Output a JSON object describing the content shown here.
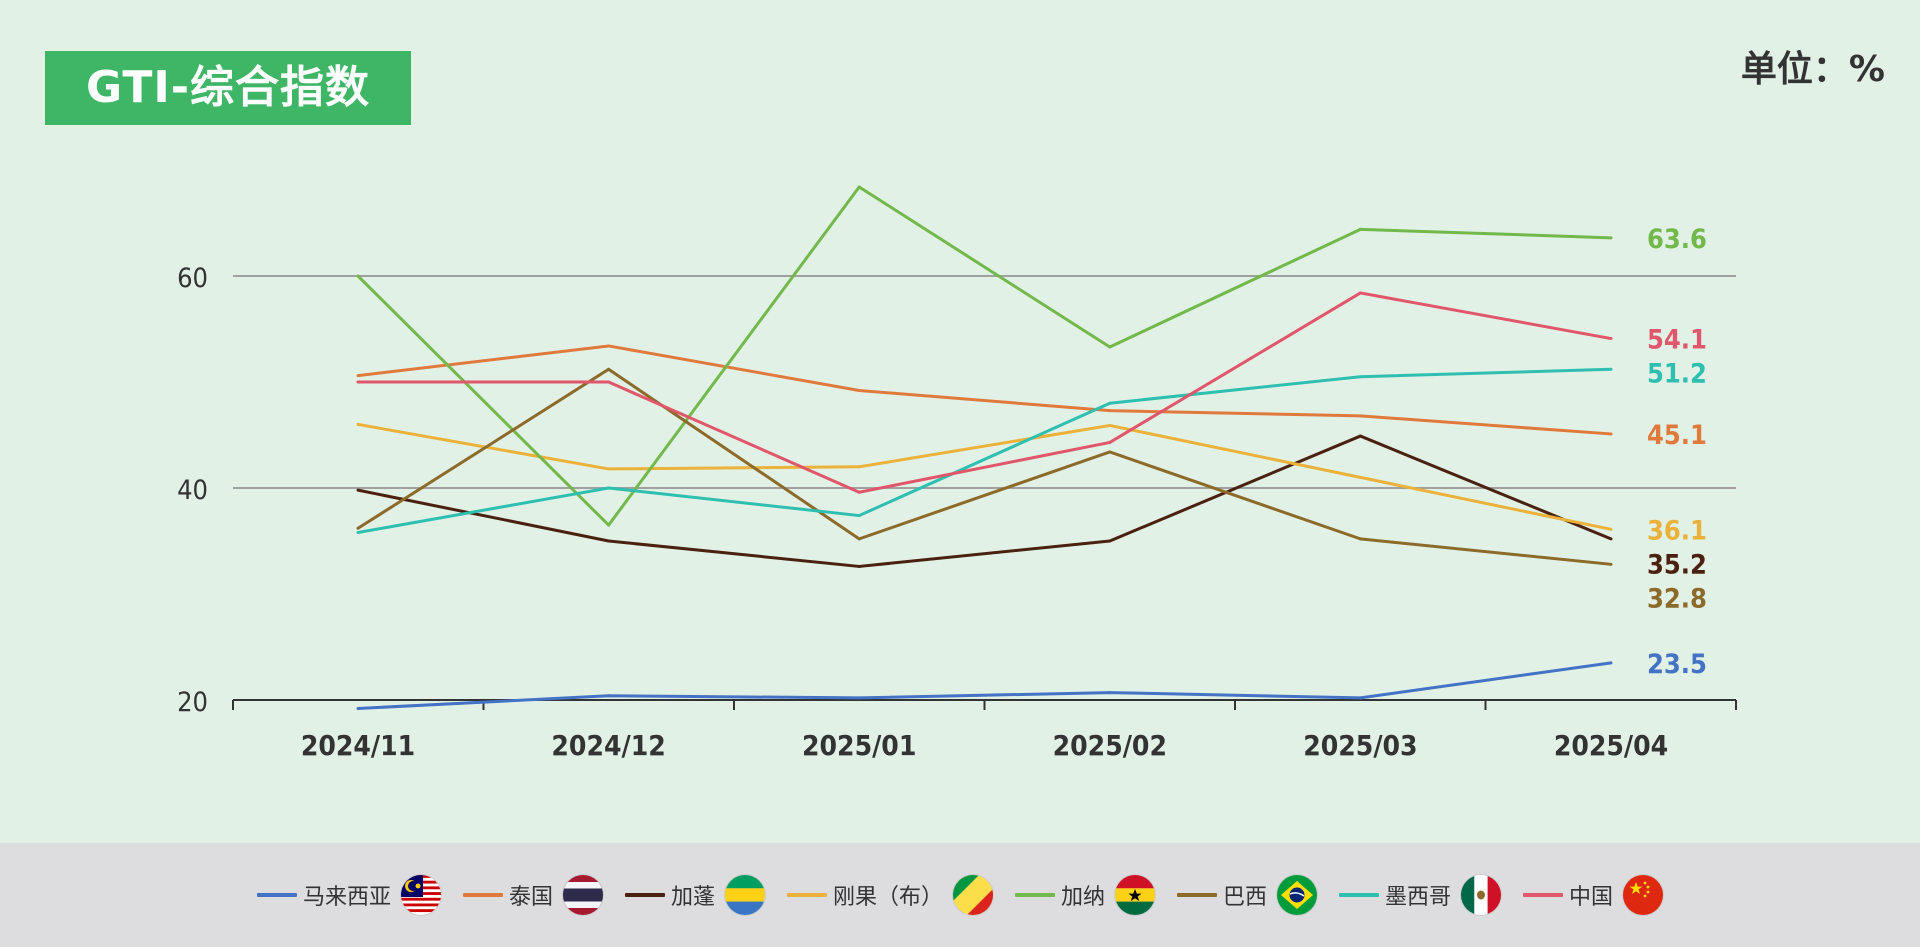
{
  "header": {
    "title": "GTI-综合指数",
    "unit": "单位：%"
  },
  "chart_data": {
    "type": "line",
    "title": "GTI-综合指数",
    "unit": "单位：%",
    "categories": [
      "2024/11",
      "2024/12",
      "2025/01",
      "2025/02",
      "2025/03",
      "2025/04"
    ],
    "y_ticks": [
      "20",
      "40",
      "60"
    ],
    "ylim": [
      20,
      70
    ],
    "grid": "horizontal at 40 and 60",
    "legend_position": "bottom",
    "series": [
      {
        "name": "马来西亚",
        "color": "#4472c4",
        "flag": "malaysia-flag-icon",
        "values": [
          19.2,
          20.4,
          20.2,
          20.7,
          20.2,
          23.5
        ],
        "end_label": "23.5"
      },
      {
        "name": "泰国",
        "color": "#e07a3c",
        "flag": "thailand-flag-icon",
        "values": [
          50.6,
          53.4,
          49.2,
          47.3,
          46.8,
          45.1
        ],
        "end_label": "45.1"
      },
      {
        "name": "加蓬",
        "color": "#4a2010",
        "flag": "gabon-flag-icon",
        "values": [
          39.8,
          35.0,
          32.6,
          35.0,
          44.9,
          35.2
        ],
        "end_label": "35.2"
      },
      {
        "name": "刚果（布）",
        "color": "#eab23a",
        "flag": "congo-flag-icon",
        "values": [
          46.0,
          41.8,
          42.0,
          45.9,
          41.0,
          36.1
        ],
        "end_label": "36.1"
      },
      {
        "name": "加纳",
        "color": "#72b84a",
        "flag": "ghana-flag-icon",
        "values": [
          60.0,
          36.5,
          68.4,
          53.3,
          64.4,
          63.6
        ],
        "end_label": "63.6"
      },
      {
        "name": "巴西",
        "color": "#8c6a2a",
        "flag": "brazil-flag-icon",
        "values": [
          36.2,
          51.2,
          35.2,
          43.4,
          35.2,
          32.8
        ],
        "end_label": "32.8"
      },
      {
        "name": "墨西哥",
        "color": "#2ebfb0",
        "flag": "mexico-flag-icon",
        "values": [
          35.8,
          40.0,
          37.4,
          48.0,
          50.5,
          51.2
        ],
        "end_label": "51.2"
      },
      {
        "name": "中国",
        "color": "#e0566a",
        "flag": "china-flag-icon",
        "values": [
          50.0,
          50.0,
          39.6,
          44.3,
          58.4,
          54.1
        ],
        "end_label": "54.1"
      }
    ]
  }
}
